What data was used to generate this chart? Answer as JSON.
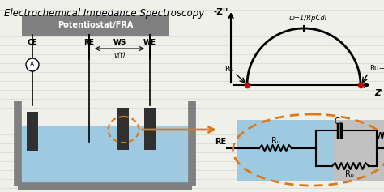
{
  "title": "Electrochemical Impedance Spectroscopy",
  "title_fontsize": 8.5,
  "bg_color": "#f0f0eb",
  "line_color": "#d8d8d0",
  "potentiostat_label": "Potentiostat/FRA",
  "electrode_labels": [
    "CE",
    "RE",
    "WS",
    "WE"
  ],
  "ws_label": "v(t)",
  "Ru_label": "Ru",
  "RuRp_label": "Ru+Rp",
  "omega_label": "ω=1/RpCdl",
  "neg_Z_label": "-Z''",
  "Z_label": "Z'",
  "Ru_circ": "Rᵤ",
  "Rp_circ": "Rₚ",
  "Cdl_circ": "Cₐₗ",
  "RE_circ": "RE",
  "WE_circ": "WE",
  "orange_color": "#E07818",
  "red_dot_color": "#cc0000",
  "blue_fill": "#9ecae1",
  "gray_fill": "#c0c0c0",
  "tank_gray": "#808080",
  "box_fill": "#808080",
  "elec_color": "#303030"
}
